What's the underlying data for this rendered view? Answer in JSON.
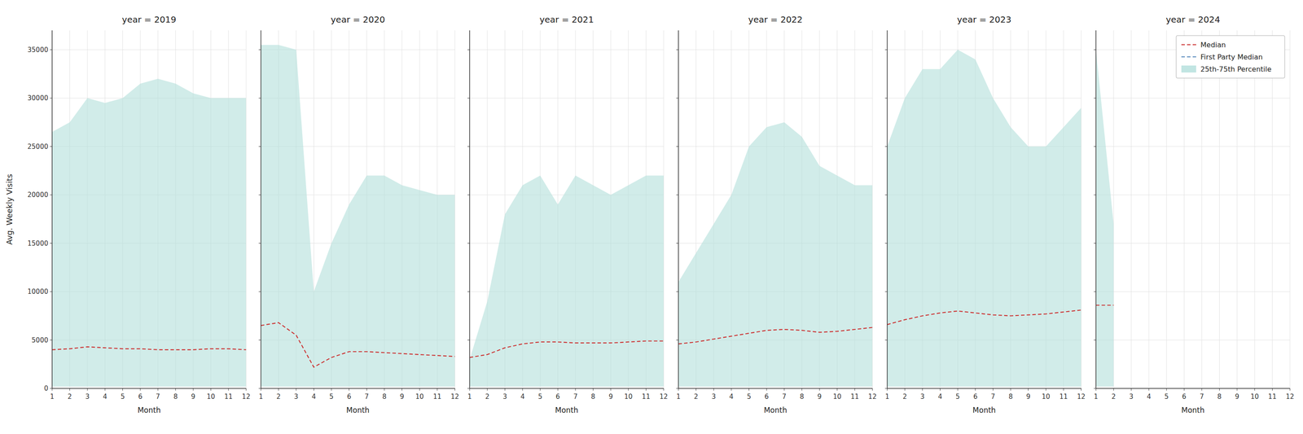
{
  "chart_data": [
    {
      "type": "line",
      "title": "year = 2019",
      "xlabel": "Month",
      "ylabel": "Avg. Weekly Visits",
      "x": [
        1,
        2,
        3,
        4,
        5,
        6,
        7,
        8,
        9,
        10,
        11,
        12
      ],
      "xlim": [
        1,
        12
      ],
      "xticks": [
        1,
        2,
        3,
        4,
        5,
        6,
        7,
        8,
        9,
        10,
        11,
        12
      ],
      "ylim": [
        0,
        37000
      ],
      "yticks": [
        0,
        5000,
        10000,
        15000,
        20000,
        25000,
        30000,
        35000
      ],
      "grid": true,
      "series": [
        {
          "name": "Median",
          "type": "line",
          "color": "#cc3333",
          "line_style": "dashed",
          "values": [
            4000,
            4100,
            4300,
            4200,
            4100,
            4100,
            4000,
            4000,
            4000,
            4100,
            4100,
            4000
          ]
        },
        {
          "name": "25th-75th Percentile",
          "type": "band",
          "color": "#b2dfdb",
          "low": [
            200,
            200,
            200,
            200,
            200,
            200,
            200,
            200,
            200,
            200,
            200,
            200
          ],
          "high": [
            26500,
            27500,
            30000,
            29500,
            30000,
            31500,
            32000,
            31500,
            30500,
            30000,
            30000,
            30000
          ]
        }
      ]
    },
    {
      "type": "line",
      "title": "year = 2020",
      "xlabel": "Month",
      "tick_labels": "x",
      "x": [
        1,
        2,
        3,
        4,
        5,
        6,
        7,
        8,
        9,
        10,
        11,
        12
      ],
      "xlim": [
        1,
        12
      ],
      "xticks": [
        1,
        2,
        3,
        4,
        5,
        6,
        7,
        8,
        9,
        10,
        11,
        12
      ],
      "ylim": [
        0,
        37000
      ],
      "yticks": [
        0,
        5000,
        10000,
        15000,
        20000,
        25000,
        30000,
        35000
      ],
      "grid": true,
      "series": [
        {
          "name": "Median",
          "type": "line",
          "color": "#cc3333",
          "line_style": "dashed",
          "values": [
            6500,
            6800,
            5500,
            2200,
            3200,
            3800,
            3800,
            3700,
            3600,
            3500,
            3400,
            3300
          ]
        },
        {
          "name": "25th-75th Percentile",
          "type": "band",
          "color": "#b2dfdb",
          "low": [
            200,
            200,
            200,
            200,
            200,
            200,
            200,
            200,
            200,
            200,
            200,
            200
          ],
          "high": [
            35500,
            35500,
            35000,
            10000,
            15000,
            19000,
            22000,
            22000,
            21000,
            20500,
            20000,
            20000
          ]
        }
      ]
    },
    {
      "type": "line",
      "title": "year = 2021",
      "xlabel": "Month",
      "tick_labels": "x",
      "x": [
        1,
        2,
        3,
        4,
        5,
        6,
        7,
        8,
        9,
        10,
        11,
        12
      ],
      "xlim": [
        1,
        12
      ],
      "xticks": [
        1,
        2,
        3,
        4,
        5,
        6,
        7,
        8,
        9,
        10,
        11,
        12
      ],
      "ylim": [
        0,
        37000
      ],
      "yticks": [
        0,
        5000,
        10000,
        15000,
        20000,
        25000,
        30000,
        35000
      ],
      "grid": true,
      "series": [
        {
          "name": "Median",
          "type": "line",
          "color": "#cc3333",
          "line_style": "dashed",
          "values": [
            3200,
            3500,
            4200,
            4600,
            4800,
            4800,
            4700,
            4700,
            4700,
            4800,
            4900,
            4900
          ]
        },
        {
          "name": "25th-75th Percentile",
          "type": "band",
          "color": "#b2dfdb",
          "low": [
            200,
            200,
            200,
            200,
            200,
            200,
            200,
            200,
            200,
            200,
            200,
            200
          ],
          "high": [
            3000,
            9000,
            18000,
            21000,
            22000,
            19000,
            22000,
            21000,
            20000,
            21000,
            22000,
            22000
          ]
        }
      ]
    },
    {
      "type": "line",
      "title": "year = 2022",
      "xlabel": "Month",
      "tick_labels": "x",
      "x": [
        1,
        2,
        3,
        4,
        5,
        6,
        7,
        8,
        9,
        10,
        11,
        12
      ],
      "xlim": [
        1,
        12
      ],
      "xticks": [
        1,
        2,
        3,
        4,
        5,
        6,
        7,
        8,
        9,
        10,
        11,
        12
      ],
      "ylim": [
        0,
        37000
      ],
      "yticks": [
        0,
        5000,
        10000,
        15000,
        20000,
        25000,
        30000,
        35000
      ],
      "grid": true,
      "series": [
        {
          "name": "Median",
          "type": "line",
          "color": "#cc3333",
          "line_style": "dashed",
          "values": [
            4600,
            4800,
            5100,
            5400,
            5700,
            6000,
            6100,
            6000,
            5800,
            5900,
            6100,
            6300
          ]
        },
        {
          "name": "25th-75th Percentile",
          "type": "band",
          "color": "#b2dfdb",
          "low": [
            200,
            200,
            200,
            200,
            200,
            200,
            200,
            200,
            200,
            200,
            200,
            200
          ],
          "high": [
            11000,
            14000,
            17000,
            20000,
            25000,
            27000,
            27500,
            26000,
            23000,
            22000,
            21000,
            21000
          ]
        }
      ]
    },
    {
      "type": "line",
      "title": "year = 2023",
      "xlabel": "Month",
      "tick_labels": "x",
      "x": [
        1,
        2,
        3,
        4,
        5,
        6,
        7,
        8,
        9,
        10,
        11,
        12
      ],
      "xlim": [
        1,
        12
      ],
      "xticks": [
        1,
        2,
        3,
        4,
        5,
        6,
        7,
        8,
        9,
        10,
        11,
        12
      ],
      "ylim": [
        0,
        37000
      ],
      "yticks": [
        0,
        5000,
        10000,
        15000,
        20000,
        25000,
        30000,
        35000
      ],
      "grid": true,
      "series": [
        {
          "name": "Median",
          "type": "line",
          "color": "#cc3333",
          "line_style": "dashed",
          "values": [
            6600,
            7100,
            7500,
            7800,
            8000,
            7800,
            7600,
            7500,
            7600,
            7700,
            7900,
            8100
          ]
        },
        {
          "name": "25th-75th Percentile",
          "type": "band",
          "color": "#b2dfdb",
          "low": [
            200,
            200,
            200,
            200,
            200,
            200,
            200,
            200,
            200,
            200,
            200,
            200
          ],
          "high": [
            25000,
            30000,
            33000,
            33000,
            35000,
            34000,
            30000,
            27000,
            25000,
            25000,
            27000,
            29000
          ]
        }
      ]
    },
    {
      "type": "line",
      "title": "year = 2024",
      "xlabel": "Month",
      "tick_labels": "x",
      "legend": "upper right",
      "x": [
        1,
        2
      ],
      "xlim": [
        1,
        12
      ],
      "xticks": [
        1,
        2,
        3,
        4,
        5,
        6,
        7,
        8,
        9,
        10,
        11,
        12
      ],
      "ylim": [
        0,
        37000
      ],
      "yticks": [
        0,
        5000,
        10000,
        15000,
        20000,
        25000,
        30000,
        35000
      ],
      "grid": true,
      "series": [
        {
          "name": "Median",
          "type": "line",
          "color": "#cc3333",
          "line_style": "dashed",
          "values": [
            8600,
            8600
          ]
        },
        {
          "name": "First Party Median",
          "type": "line",
          "color": "#5588bb",
          "line_style": "dashed",
          "values": [
            null,
            null
          ]
        },
        {
          "name": "25th-75th Percentile",
          "type": "band",
          "color": "#b2dfdb",
          "low": [
            200,
            200
          ],
          "high": [
            35000,
            17000
          ]
        }
      ]
    }
  ]
}
